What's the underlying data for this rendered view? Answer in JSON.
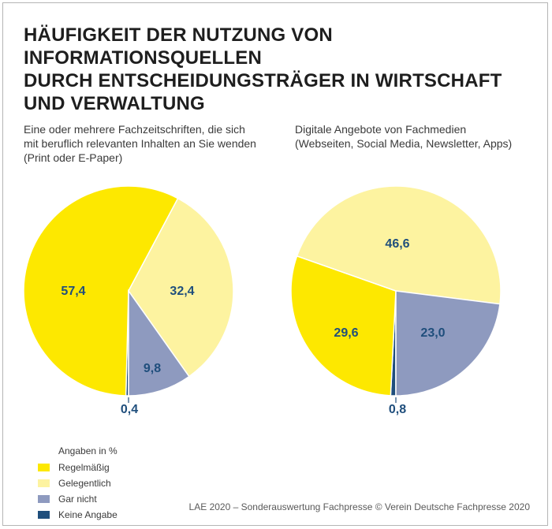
{
  "title_lines": [
    "HÄUFIGKEIT DER NUTZUNG VON INFORMATIONSQUELLEN",
    "DURCH ENTSCHEIDUNGSTRÄGER IN WIRTSCHAFT",
    "UND VERWALTUNG"
  ],
  "chart_data": [
    {
      "type": "pie",
      "title_lines": [
        "Eine oder mehrere Fachzeitschriften, die sich",
        "mit beruflich relevanten Inhalten an Sie wenden",
        "(Print oder E-Paper)"
      ],
      "categories": [
        "Regelmäßig",
        "Gelegentlich",
        "Gar nicht",
        "Keine Angabe"
      ],
      "values": [
        57.4,
        32.4,
        9.8,
        0.4
      ],
      "value_labels": [
        "57,4",
        "32,4",
        "9,8",
        "0,4"
      ],
      "unit": "%"
    },
    {
      "type": "pie",
      "title_lines": [
        "Digitale Angebote von Fachmedien",
        "(Webseiten, Social Media, Newsletter, Apps)"
      ],
      "categories": [
        "Regelmäßig",
        "Gelegentlich",
        "Gar nicht",
        "Keine Angabe"
      ],
      "values": [
        29.6,
        46.6,
        23.0,
        0.8
      ],
      "value_labels": [
        "29,6",
        "46,6",
        "23,0",
        "0,8"
      ],
      "unit": "%"
    }
  ],
  "legend": {
    "title": "Angaben in %",
    "items": [
      {
        "label": "Regelmäßig",
        "color": "#fde800"
      },
      {
        "label": "Gelegentlich",
        "color": "#fdf3a0"
      },
      {
        "label": "Gar nicht",
        "color": "#8e9abf"
      },
      {
        "label": "Keine Angabe",
        "color": "#1f4e7c"
      }
    ]
  },
  "source": "LAE 2020 – Sonderauswertung Fachpresse © Verein Deutsche Fachpresse 2020"
}
